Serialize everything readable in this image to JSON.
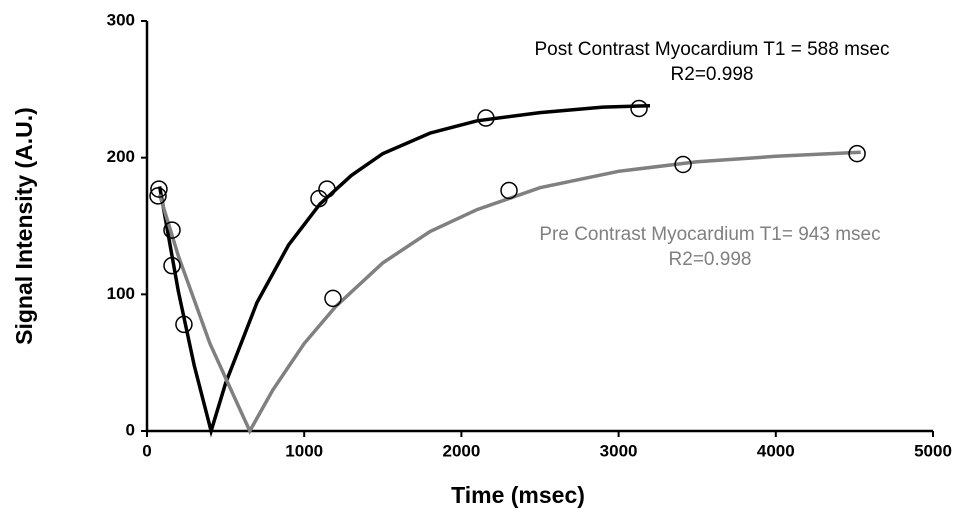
{
  "chart_data": {
    "type": "scatter",
    "x_label": "Time (msec)",
    "y_label": "Signal Intensity (A.U.)",
    "xlim": [
      0,
      5000
    ],
    "xticks": [
      0,
      1000,
      2000,
      3000,
      4000,
      5000
    ],
    "ylim": [
      0,
      300
    ],
    "yticks": [
      0,
      100,
      200,
      300
    ],
    "marker_color": "#000000",
    "series": [
      {
        "name": "Post Contrast Myocardium T1 = 588 msec",
        "fit_label": "R2=0.998",
        "color": "#000000",
        "x": [
          70,
          159,
          235,
          1094,
          1145,
          2156,
          3130
        ],
        "values": [
          172,
          121,
          78,
          170,
          177,
          229,
          236
        ],
        "fit": {
          "x": [
            80,
            200,
            300,
            408,
            500,
            700,
            900,
            1100,
            1300,
            1500,
            1800,
            2100,
            2500,
            2900,
            3200
          ],
          "values": [
            179,
            102,
            48,
            0,
            35,
            94,
            136,
            166,
            187,
            203,
            218,
            227,
            233,
            237,
            238
          ]
        }
      },
      {
        "name": "Pre Contrast Myocardium T1= 943 msec",
        "fit_label": "R2=0.998",
        "color": "#808080",
        "x": [
          76,
          159,
          1183,
          2303,
          3410,
          4517
        ],
        "values": [
          177,
          147,
          97,
          176,
          195,
          203
        ],
        "fit": {
          "x": [
            80,
            200,
            400,
            654,
            800,
            1000,
            1200,
            1500,
            1800,
            2100,
            2500,
            3000,
            3500,
            4000,
            4540
          ],
          "values": [
            173,
            128,
            64,
            0,
            30,
            64,
            91,
            123,
            146,
            162,
            178,
            190,
            197,
            201,
            204
          ]
        }
      }
    ]
  }
}
